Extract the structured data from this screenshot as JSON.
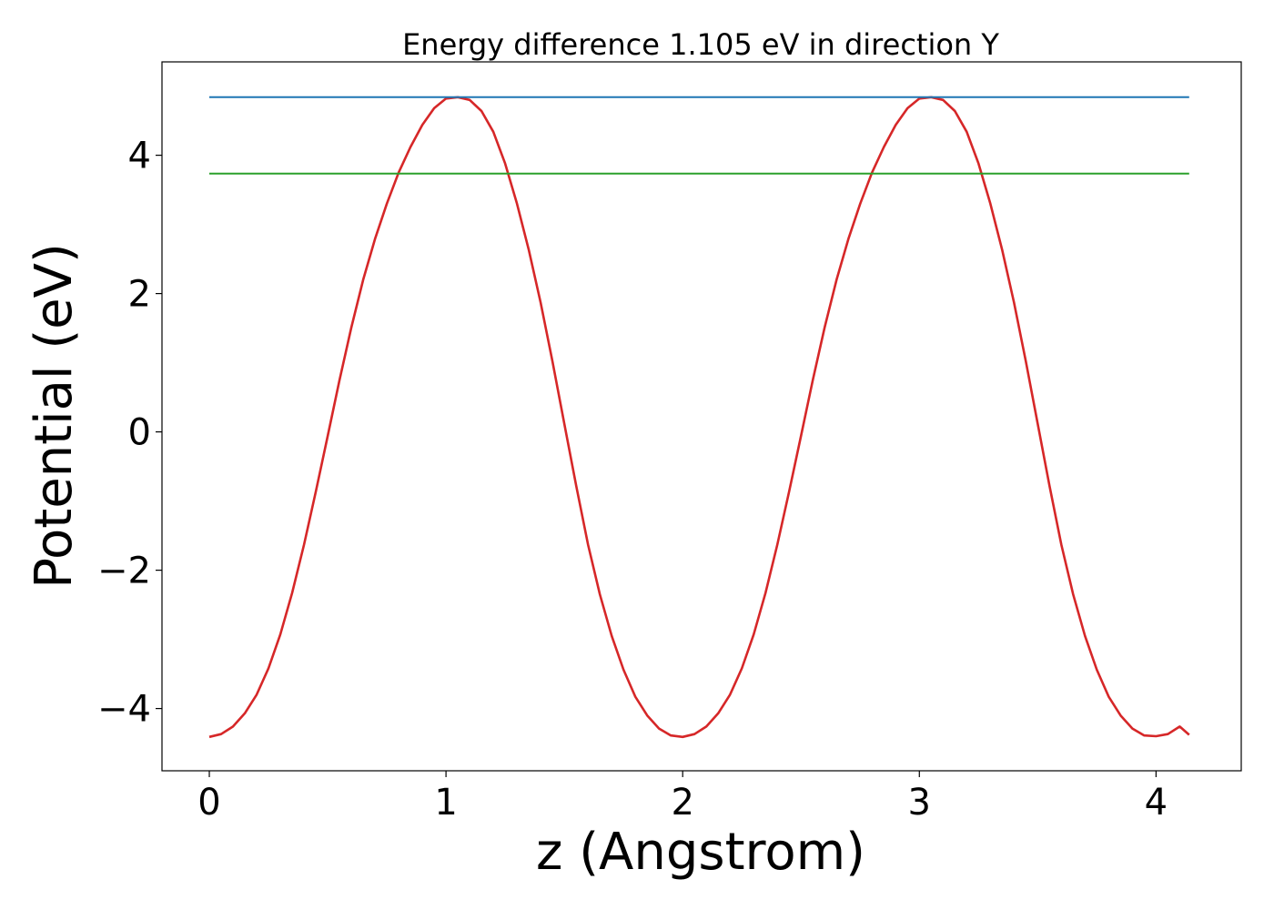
{
  "chart_data": {
    "type": "line",
    "title": "Energy difference 1.105 eV in direction Y",
    "xlabel": "z (Angstrom)",
    "ylabel": "Potential (eV)",
    "xlim": [
      -0.2,
      4.36
    ],
    "ylim": [
      -4.9,
      5.35
    ],
    "xticks": [
      0,
      1,
      2,
      3,
      4
    ],
    "xtick_labels": [
      "0",
      "1",
      "2",
      "3",
      "4"
    ],
    "yticks": [
      -4,
      -2,
      0,
      2,
      4
    ],
    "ytick_labels": [
      "−4",
      "−2",
      "0",
      "2",
      "4"
    ],
    "grid": false,
    "legend": "none",
    "series": [
      {
        "color": "#d62728",
        "x": [
          0.0,
          0.05,
          0.1,
          0.15,
          0.2,
          0.25,
          0.3,
          0.35,
          0.4,
          0.45,
          0.5,
          0.55,
          0.6,
          0.65,
          0.7,
          0.75,
          0.8,
          0.85,
          0.9,
          0.95,
          1.0,
          1.05,
          1.1,
          1.15,
          1.2,
          1.25,
          1.3,
          1.35,
          1.4,
          1.45,
          1.5,
          1.55,
          1.6,
          1.65,
          1.7,
          1.75,
          1.8,
          1.85,
          1.9,
          1.95,
          2.0,
          2.05,
          2.1,
          2.15,
          2.2,
          2.25,
          2.3,
          2.35,
          2.4,
          2.45,
          2.5,
          2.55,
          2.6,
          2.65,
          2.7,
          2.75,
          2.8,
          2.85,
          2.9,
          2.95,
          3.0,
          3.05,
          3.1,
          3.15,
          3.2,
          3.25,
          3.3,
          3.35,
          3.4,
          3.45,
          3.5,
          3.55,
          3.6,
          3.65,
          3.7,
          3.75,
          3.8,
          3.85,
          3.9,
          3.95,
          4.0,
          4.05,
          4.1,
          4.14
        ],
        "y": [
          -4.41,
          -4.37,
          -4.26,
          -4.07,
          -3.8,
          -3.42,
          -2.93,
          -2.33,
          -1.63,
          -0.86,
          -0.06,
          0.75,
          1.51,
          2.2,
          2.79,
          3.3,
          3.75,
          4.12,
          4.44,
          4.68,
          4.82,
          4.84,
          4.8,
          4.64,
          4.34,
          3.88,
          3.3,
          2.63,
          1.87,
          1.02,
          0.12,
          -0.78,
          -1.63,
          -2.35,
          -2.95,
          -3.44,
          -3.83,
          -4.1,
          -4.29,
          -4.39,
          -4.41,
          -4.37,
          -4.26,
          -4.07,
          -3.8,
          -3.42,
          -2.93,
          -2.33,
          -1.63,
          -0.86,
          -0.06,
          0.75,
          1.51,
          2.2,
          2.79,
          3.3,
          3.75,
          4.12,
          4.44,
          4.68,
          4.82,
          4.84,
          4.8,
          4.64,
          4.34,
          3.88,
          3.3,
          2.63,
          1.87,
          1.02,
          0.12,
          -0.78,
          -1.63,
          -2.35,
          -2.95,
          -3.44,
          -3.83,
          -4.1,
          -4.29,
          -4.39,
          -4.4,
          -4.37,
          -4.26,
          -4.38
        ]
      },
      {
        "color": "#1f77b4",
        "x": [
          0.0,
          4.14
        ],
        "y": [
          4.84,
          4.84
        ]
      },
      {
        "color": "#2ca02c",
        "x": [
          0.0,
          4.14
        ],
        "y": [
          3.735,
          3.735
        ]
      }
    ]
  }
}
